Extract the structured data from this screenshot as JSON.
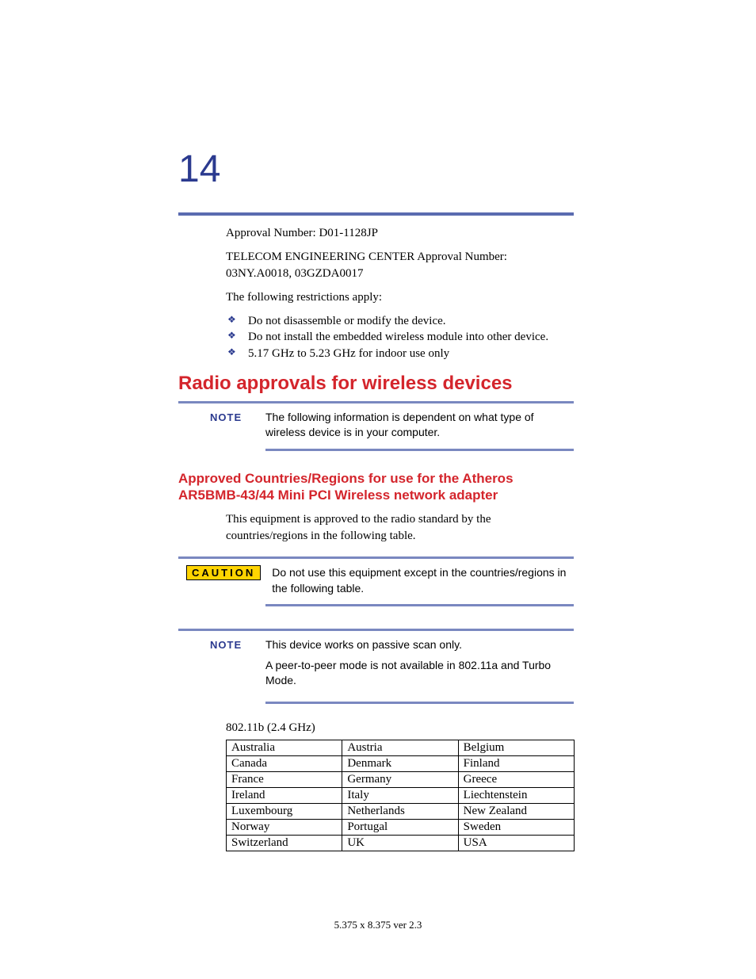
{
  "page_number": "14",
  "colors": {
    "heading_blue": "#2b3a8f",
    "rule_blue": "#5a6bb0",
    "rule_note": "#7a88c0",
    "heading_red": "#d4252c",
    "caution_bg": "#ffd400"
  },
  "intro": {
    "approval_line": "Approval Number: D01-1128JP",
    "telecom_line": "TELECOM ENGINEERING CENTER Approval Number: 03NY.A0018, 03GZDA0017",
    "restrict_intro": "The following restrictions apply:",
    "bullets": [
      "Do not disassemble or modify the device.",
      "Do not install the embedded wireless module into other device.",
      "5.17 GHz to 5.23 GHz for indoor use only"
    ]
  },
  "h1": "Radio approvals for wireless devices",
  "note1": {
    "label": "NOTE",
    "text": "The following information is dependent on what type of wireless device is in your computer."
  },
  "h2": "Approved Countries/Regions for use for the Atheros AR5BMB-43/44 Mini PCI Wireless network adapter",
  "equip_text": "This equipment is approved to the radio standard by the countries/regions in the following table.",
  "caution": {
    "label": "CAUTION",
    "text": "Do not use this equipment except in the countries/regions in the following table."
  },
  "note2": {
    "label": "NOTE",
    "line1": "This device works on passive scan only.",
    "line2": "A peer-to-peer mode is not available in 802.11a and Turbo Mode."
  },
  "table": {
    "title": "802.11b (2.4 GHz)",
    "rows": [
      [
        "Australia",
        "Austria",
        "Belgium"
      ],
      [
        "Canada",
        "Denmark",
        "Finland"
      ],
      [
        "France",
        "Germany",
        "Greece"
      ],
      [
        "Ireland",
        "Italy",
        "Liechtenstein"
      ],
      [
        "Luxembourg",
        "Netherlands",
        "New Zealand"
      ],
      [
        "Norway",
        "Portugal",
        "Sweden"
      ],
      [
        "Switzerland",
        "UK",
        "USA"
      ]
    ]
  },
  "footer": "5.375 x 8.375 ver 2.3"
}
